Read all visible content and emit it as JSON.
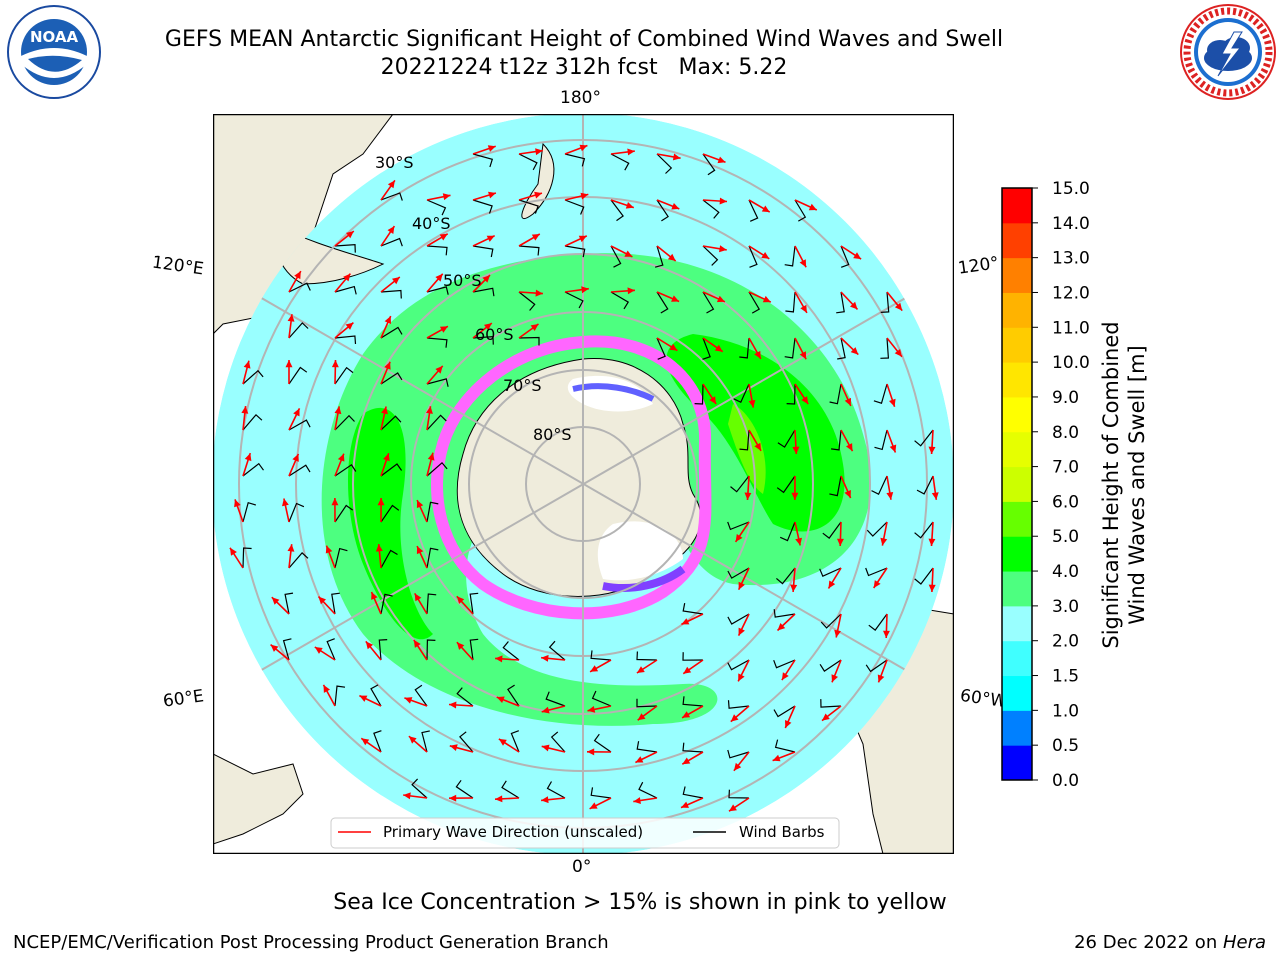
{
  "title": {
    "line1": "GEFS MEAN Antarctic Significant Height of Combined Wind Waves and Swell",
    "line2": "20221224 t12z 312h fcst   Max: 5.22"
  },
  "logos": {
    "left": {
      "icon": "noaa-logo",
      "text": "NOAA"
    },
    "right": {
      "icon": "nws-logo"
    }
  },
  "map": {
    "projection": "south-polar-stereographic",
    "longitude_labels": {
      "top": "180°",
      "bottom": "0°",
      "left_upper": "120°E",
      "left_lower": "60°E",
      "right_upper": "120°",
      "right_lower": "60°W"
    },
    "latitude_labels": [
      "30°S",
      "40°S",
      "50°S",
      "60°S",
      "70°S",
      "80°S"
    ],
    "legend": {
      "wave_direction": "Primary Wave Direction (unscaled)",
      "wind_barbs": "Wind Barbs"
    },
    "colors": {
      "ocean_low": "#99ffff",
      "land": "#efecdc",
      "sea_ice": "#ff66ff",
      "wave_arrow": "#ff0000",
      "barb": "#000000"
    }
  },
  "colorbar": {
    "label_line1": "Significant Height of Combined",
    "label_line2": "Wind Waves and Swell [m]",
    "ticks": [
      "0.0",
      "0.5",
      "1.0",
      "1.5",
      "2.0",
      "3.0",
      "4.0",
      "5.0",
      "6.0",
      "7.0",
      "8.0",
      "9.0",
      "10.0",
      "11.0",
      "12.0",
      "13.0",
      "14.0",
      "15.0"
    ],
    "colors": [
      "#0000ff",
      "#0080ff",
      "#00ffff",
      "#40ffff",
      "#99ffff",
      "#4dff80",
      "#00ff00",
      "#66ff00",
      "#ccff00",
      "#e6ff00",
      "#ffff00",
      "#ffe600",
      "#ffcc00",
      "#ffb300",
      "#ff8000",
      "#ff4000",
      "#ff0000"
    ]
  },
  "note": "Sea Ice Concentration > 15% is shown in pink to yellow",
  "footer": {
    "left": "NCEP/EMC/Verification Post Processing Product Generation Branch",
    "right_date": "26 Dec 2022 on ",
    "right_host": "Hera"
  }
}
